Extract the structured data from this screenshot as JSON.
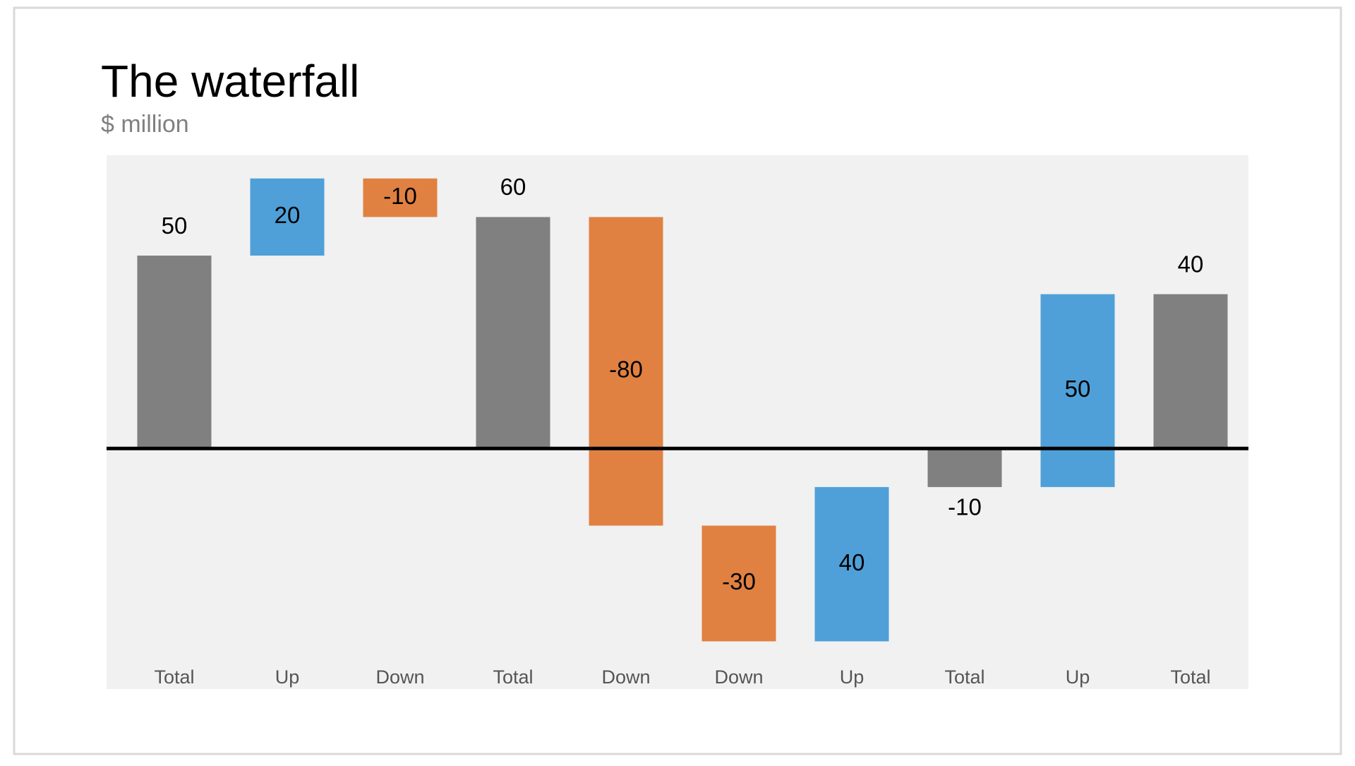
{
  "chart_data": {
    "type": "waterfall",
    "title": "The waterfall",
    "subtitle": "$ million",
    "categories": [
      "Total",
      "Up",
      "Down",
      "Total",
      "Down",
      "Down",
      "Up",
      "Total",
      "Up",
      "Total"
    ],
    "values": [
      50,
      20,
      -10,
      60,
      -80,
      -30,
      40,
      -10,
      50,
      40
    ],
    "measure": [
      "total",
      "relative",
      "relative",
      "total",
      "relative",
      "relative",
      "relative",
      "total",
      "relative",
      "total"
    ],
    "colors": {
      "total": "#808080",
      "increase": "#4fa0d8",
      "decrease": "#e08142"
    },
    "ylim": [
      -62,
      76
    ]
  }
}
